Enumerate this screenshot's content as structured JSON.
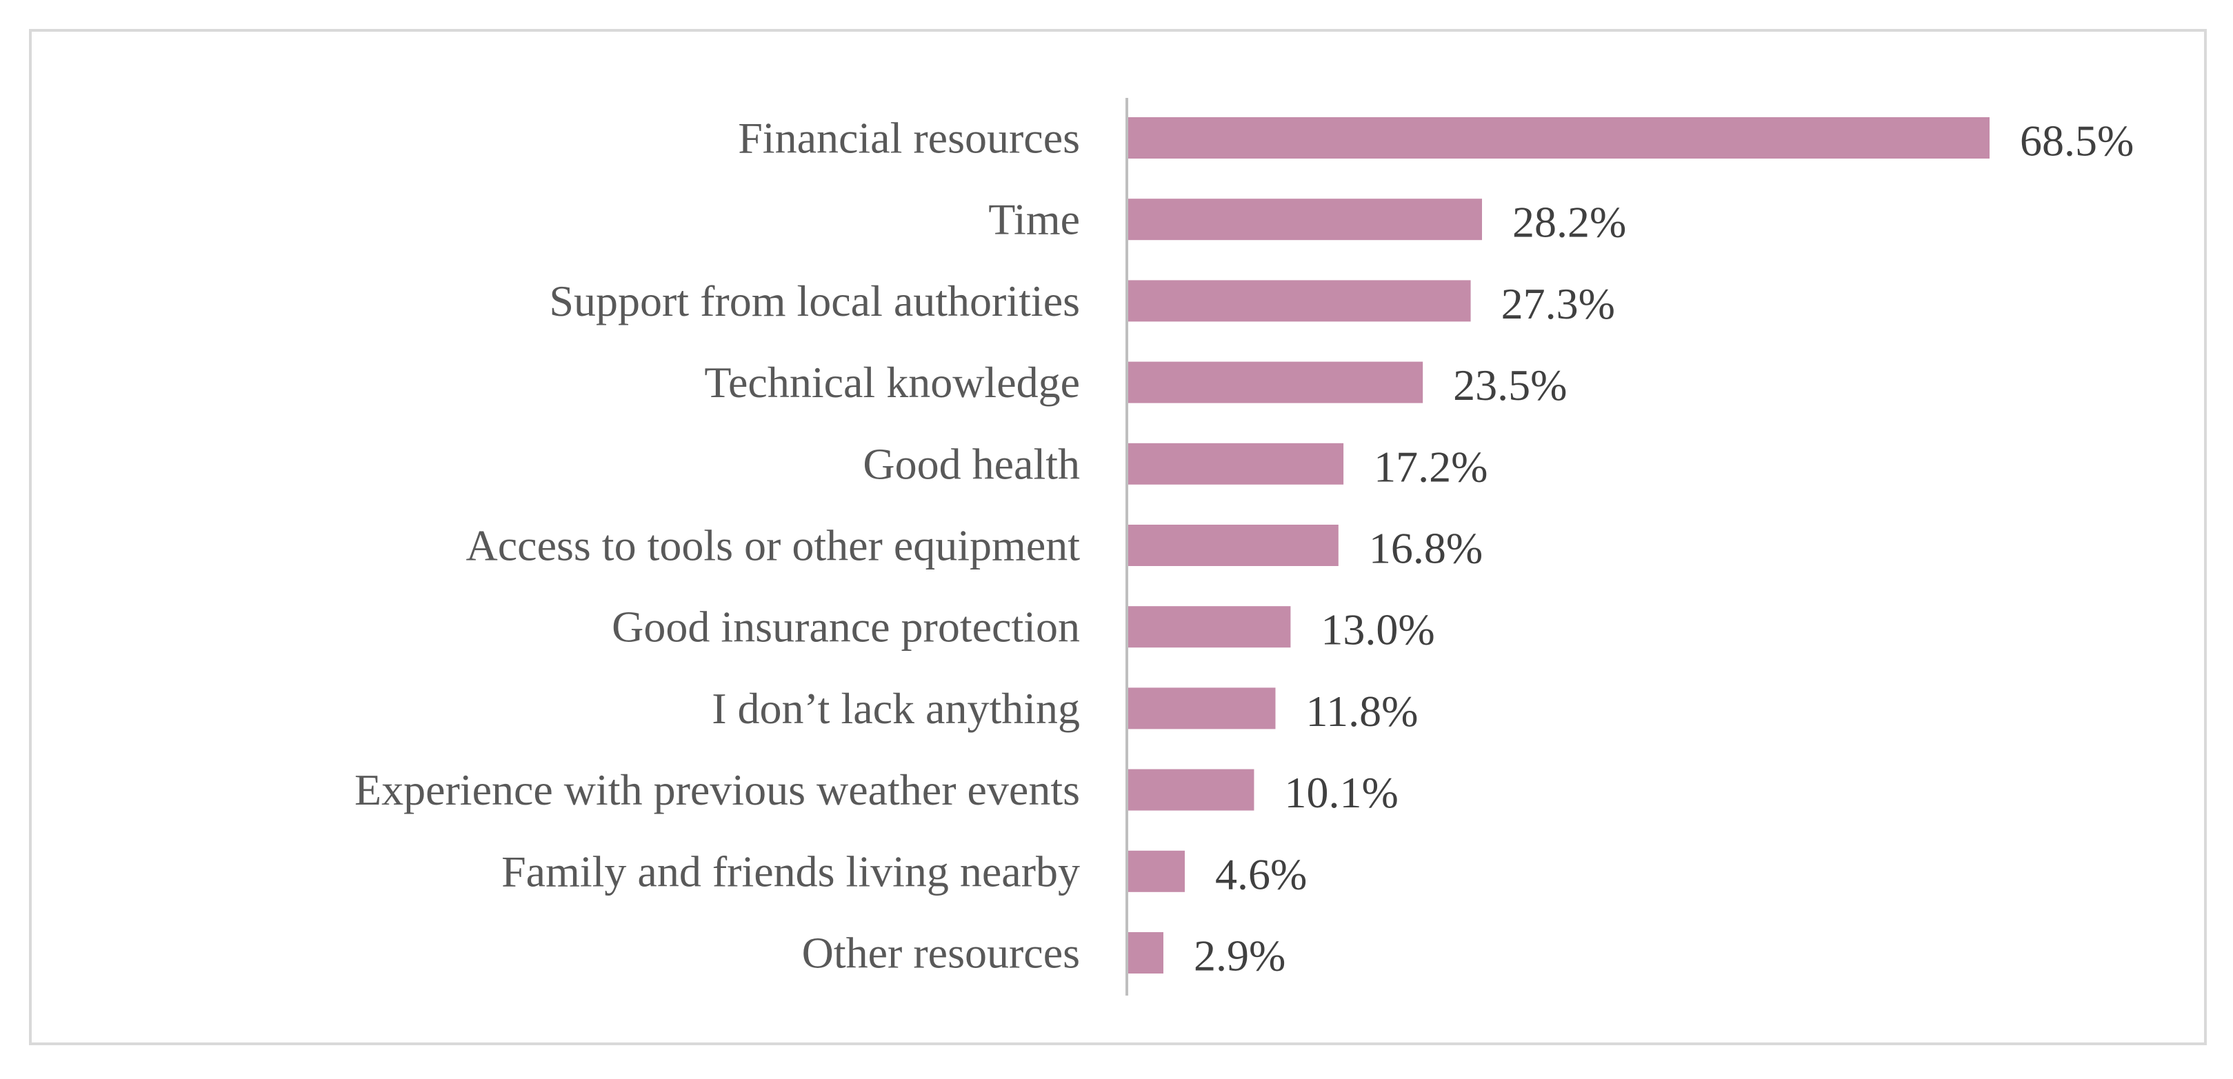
{
  "chart_data": {
    "type": "bar",
    "orientation": "horizontal",
    "categories": [
      "Financial resources",
      "Time",
      "Support from local authorities",
      "Technical knowledge",
      "Good health",
      "Access to tools or other equipment",
      "Good insurance protection",
      "I don’t lack anything",
      "Experience with previous weather events",
      "Family and friends living nearby",
      "Other resources"
    ],
    "values": [
      68.5,
      28.2,
      27.3,
      23.5,
      17.2,
      16.8,
      13.0,
      11.8,
      10.1,
      4.6,
      2.9
    ],
    "value_labels": [
      "68.5%",
      "28.2%",
      "27.3%",
      "23.5%",
      "17.2%",
      "16.8%",
      "13.0%",
      "11.8%",
      "10.1%",
      "4.6%",
      "2.9%"
    ],
    "unit": "%",
    "title": "",
    "xlabel": "",
    "ylabel": "",
    "xlim": [
      0,
      68.5
    ],
    "grid": false,
    "legend": "none",
    "bar_color": "#c48ca9",
    "axis_color": "#bfbfbf"
  }
}
